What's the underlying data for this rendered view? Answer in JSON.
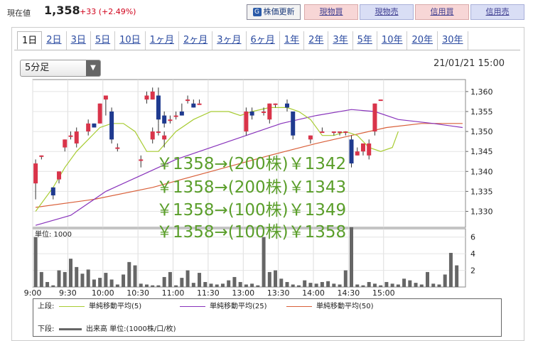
{
  "header": {
    "price_label": "現在値",
    "price_value": "1,358",
    "price_change": "+33 (+2.49%)",
    "refresh_label": "株価更新",
    "buttons": [
      "現物買",
      "現物売",
      "信用買",
      "信用売"
    ]
  },
  "tabs": [
    "1日",
    "2日",
    "3日",
    "5日",
    "10日",
    "1ヶ月",
    "2ヶ月",
    "3ヶ月",
    "6ヶ月",
    "1年",
    "2年",
    "3年",
    "5年",
    "10年",
    "20年",
    "30年"
  ],
  "active_tab": 0,
  "interval_select": {
    "value": "5分足"
  },
  "timestamp": "21/01/21 15:00",
  "overlay_lines": [
    "￥1358→(200株)￥1342",
    "￥1358→(200株)￥1343",
    "￥1358→(100株)￥1349",
    "￥1358→(100株)￥1358"
  ],
  "legend": {
    "upper_label": "上段:",
    "lower_label": "下段:",
    "ma5": "単純移動平均(5)",
    "ma25": "単純移動平均(25)",
    "ma50": "単純移動平均(50)",
    "volume": "出来高 単位:(1000株/口/枚)"
  },
  "colors": {
    "up": "#d9344a",
    "down": "#1f3a8f",
    "ma5": "#a8cc33",
    "ma25": "#8833bb",
    "ma50": "#d9603a",
    "volume": "#666666",
    "overlay": "#5a9e2a"
  },
  "chart_data": [
    {
      "type": "candlestick",
      "title": "",
      "x_ticks": [
        "9:00",
        "9:30",
        "10:00",
        "10:30",
        "11:00",
        "11:30",
        "13:00",
        "13:30",
        "14:00",
        "14:30",
        "15:00"
      ],
      "y_ticks": [
        "1,330",
        "1,335",
        "1,340",
        "1,345",
        "1,350",
        "1,355",
        "1,360"
      ],
      "ylim": [
        1326,
        1363
      ],
      "grid": true,
      "candles": [
        {
          "t": "9:00",
          "o": 1337,
          "h": 1343,
          "l": 1333,
          "c": 1342
        },
        {
          "t": "9:05",
          "o": 1344,
          "h": 1344,
          "l": 1343,
          "c": 1344
        },
        {
          "t": "9:15",
          "o": 1336,
          "h": 1336,
          "l": 1333,
          "c": 1334
        },
        {
          "t": "9:20",
          "o": 1338,
          "h": 1340,
          "l": 1337,
          "c": 1340
        },
        {
          "t": "9:25",
          "o": 1346,
          "h": 1348,
          "l": 1345,
          "c": 1348
        },
        {
          "t": "9:30",
          "o": 1349,
          "h": 1350,
          "l": 1348,
          "c": 1349
        },
        {
          "t": "9:35",
          "o": 1347,
          "h": 1351,
          "l": 1346,
          "c": 1350
        },
        {
          "t": "9:45",
          "o": 1350,
          "h": 1353,
          "l": 1349,
          "c": 1352
        },
        {
          "t": "9:50",
          "o": 1352,
          "h": 1352,
          "l": 1351,
          "c": 1351
        },
        {
          "t": "9:55",
          "o": 1352,
          "h": 1357,
          "l": 1352,
          "c": 1357
        },
        {
          "t": "10:00",
          "o": 1358,
          "h": 1359,
          "l": 1354,
          "c": 1359
        },
        {
          "t": "10:05",
          "o": 1355,
          "h": 1356,
          "l": 1347,
          "c": 1348
        },
        {
          "t": "10:10",
          "o": 1346,
          "h": 1347,
          "l": 1345,
          "c": 1346
        },
        {
          "t": "10:30",
          "o": 1343,
          "h": 1344,
          "l": 1341,
          "c": 1343
        },
        {
          "t": "10:40",
          "o": 1348,
          "h": 1351,
          "l": 1347,
          "c": 1350
        },
        {
          "t": "10:45",
          "o": 1350,
          "h": 1352,
          "l": 1349,
          "c": 1350
        },
        {
          "t": "10:50",
          "o": 1348,
          "h": 1350,
          "l": 1346,
          "c": 1349
        },
        {
          "t": "10:55",
          "o": 1353,
          "h": 1354,
          "l": 1352,
          "c": 1353
        },
        {
          "t": "11:00",
          "o": 1354,
          "h": 1355,
          "l": 1353,
          "c": 1354
        },
        {
          "t": "11:05",
          "o": 1355,
          "h": 1357,
          "l": 1354,
          "c": 1354
        },
        {
          "t": "11:10",
          "o": 1358,
          "h": 1359,
          "l": 1357,
          "c": 1358
        },
        {
          "t": "11:15",
          "o": 1357,
          "h": 1358,
          "l": 1356,
          "c": 1356
        },
        {
          "t": "11:20",
          "o": 1357,
          "h": 1358,
          "l": 1357,
          "c": 1357
        },
        {
          "t": "11:35",
          "o": 1358,
          "h": 1360,
          "l": 1357,
          "c": 1359
        },
        {
          "t": "11:40",
          "o": 1358,
          "h": 1361,
          "l": 1358,
          "c": 1360
        },
        {
          "t": "11:45",
          "o": 1359,
          "h": 1361,
          "l": 1352,
          "c": 1353
        },
        {
          "t": "11:50",
          "o": 1354,
          "h": 1355,
          "l": 1351,
          "c": 1352
        },
        {
          "t": "13:00",
          "o": 1350,
          "h": 1356,
          "l": 1349,
          "c": 1355
        },
        {
          "t": "13:05",
          "o": 1355,
          "h": 1356,
          "l": 1353,
          "c": 1354
        },
        {
          "t": "13:15",
          "o": 1355,
          "h": 1356,
          "l": 1354,
          "c": 1355
        },
        {
          "t": "13:20",
          "o": 1353,
          "h": 1357,
          "l": 1352,
          "c": 1357
        },
        {
          "t": "13:25",
          "o": 1357,
          "h": 1357,
          "l": 1356,
          "c": 1357
        },
        {
          "t": "13:35",
          "o": 1357,
          "h": 1358,
          "l": 1355,
          "c": 1356
        },
        {
          "t": "13:40",
          "o": 1355,
          "h": 1355,
          "l": 1348,
          "c": 1349
        },
        {
          "t": "13:55",
          "o": 1348,
          "h": 1349,
          "l": 1347,
          "c": 1349
        },
        {
          "t": "14:05",
          "o": 1350,
          "h": 1351,
          "l": 1350,
          "c": 1350
        },
        {
          "t": "14:15",
          "o": 1350,
          "h": 1350,
          "l": 1349,
          "c": 1350
        },
        {
          "t": "14:20",
          "o": 1350,
          "h": 1350,
          "l": 1349,
          "c": 1350
        },
        {
          "t": "14:25",
          "o": 1350,
          "h": 1350,
          "l": 1349,
          "c": 1350
        },
        {
          "t": "14:30",
          "o": 1348,
          "h": 1349,
          "l": 1341,
          "c": 1342
        },
        {
          "t": "14:35",
          "o": 1344,
          "h": 1346,
          "l": 1344,
          "c": 1345
        },
        {
          "t": "14:40",
          "o": 1345,
          "h": 1347,
          "l": 1344,
          "c": 1347
        },
        {
          "t": "14:45",
          "o": 1344,
          "h": 1348,
          "l": 1343,
          "c": 1347
        },
        {
          "t": "14:50",
          "o": 1350,
          "h": 1357,
          "l": 1349,
          "c": 1357
        },
        {
          "t": "14:55",
          "o": 1358,
          "h": 1358,
          "l": 1358,
          "c": 1358
        }
      ],
      "ma5": [
        [
          0,
          1330
        ],
        [
          3,
          1336
        ],
        [
          5,
          1341
        ],
        [
          7,
          1345
        ],
        [
          9,
          1348
        ],
        [
          11,
          1351
        ],
        [
          13,
          1352
        ],
        [
          15,
          1352
        ],
        [
          17,
          1350
        ],
        [
          19,
          1345
        ],
        [
          21,
          1345
        ],
        [
          24,
          1350
        ],
        [
          27,
          1353
        ],
        [
          30,
          1355
        ],
        [
          33,
          1355
        ],
        [
          35,
          1354
        ],
        [
          37,
          1355
        ],
        [
          40,
          1356
        ],
        [
          43,
          1356
        ],
        [
          45,
          1355
        ],
        [
          47,
          1353
        ],
        [
          49,
          1349
        ],
        [
          51,
          1349
        ],
        [
          53,
          1350
        ],
        [
          55,
          1349
        ],
        [
          57,
          1346
        ],
        [
          59,
          1345
        ],
        [
          61,
          1346
        ],
        [
          62,
          1350
        ]
      ],
      "ma25": [
        [
          0,
          1326.5
        ],
        [
          6,
          1329
        ],
        [
          12,
          1335
        ],
        [
          18,
          1339
        ],
        [
          24,
          1343
        ],
        [
          30,
          1346
        ],
        [
          36,
          1349
        ],
        [
          42,
          1352
        ],
        [
          48,
          1354
        ],
        [
          54,
          1355.5
        ],
        [
          58,
          1355
        ],
        [
          62,
          1353
        ],
        [
          68,
          1352
        ],
        [
          73,
          1351
        ]
      ],
      "ma50": [
        [
          0,
          1331
        ],
        [
          10,
          1333
        ],
        [
          20,
          1336
        ],
        [
          30,
          1340
        ],
        [
          40,
          1344
        ],
        [
          48,
          1347
        ],
        [
          54,
          1349
        ],
        [
          60,
          1351
        ],
        [
          66,
          1352
        ],
        [
          73,
          1352
        ]
      ]
    },
    {
      "type": "bar",
      "title": "",
      "ylabel": "単位: 1000",
      "y_ticks": [
        "2",
        "4",
        "6"
      ],
      "ylim": [
        0,
        7
      ],
      "volumes": [
        6.0,
        1.8,
        0.6,
        0.2,
        2.0,
        1.8,
        3.4,
        2.4,
        1.6,
        2.1,
        0.9,
        1.1,
        1.7,
        0.9,
        0.3,
        1.5,
        3.0,
        2.6,
        0.4,
        0.3,
        0.2,
        0.2,
        1.2,
        1.8,
        0.2,
        1.1,
        2.0,
        0.5,
        1.7,
        0.6,
        0.4,
        0.3,
        0.4,
        0.8,
        1.2,
        0.6,
        0.3,
        0.4,
        0.2,
        6.0,
        1.8,
        2.0,
        1.0,
        0.6,
        0.3,
        0.2,
        0.8,
        0.5,
        0.4,
        0.6,
        0.7,
        0.4,
        0.3,
        2.0,
        7.2,
        0.3,
        0.2,
        0.6,
        0.4,
        0.2,
        0.6,
        0.4,
        0.3,
        1.0,
        0.8,
        0.5,
        0.3,
        1.8,
        0.4,
        0.3,
        1.5,
        4.1,
        2.6
      ]
    }
  ]
}
